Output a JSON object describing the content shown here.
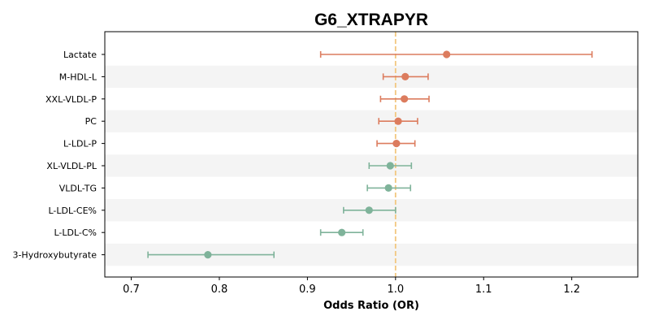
{
  "chart_data": {
    "type": "forest",
    "title": "G6_XTRAPYR",
    "xlabel": "Odds Ratio (OR)",
    "ylabel": "",
    "xlim": [
      0.67,
      1.275
    ],
    "xticks": [
      0.7,
      0.8,
      0.9,
      1.0,
      1.1,
      1.2
    ],
    "xtick_labels": [
      "0.7",
      "0.8",
      "0.9",
      "1.0",
      "1.1",
      "1.2"
    ],
    "reference_line": 1.0,
    "grid": false,
    "alternating_row_bands": true,
    "rows": [
      {
        "label": "Lactate",
        "or": 1.058,
        "ci_low": 0.915,
        "ci_high": 1.223,
        "direction": "increase"
      },
      {
        "label": "M-HDL-L",
        "or": 1.011,
        "ci_low": 0.986,
        "ci_high": 1.037,
        "direction": "increase"
      },
      {
        "label": "XXL-VLDL-P",
        "or": 1.01,
        "ci_low": 0.983,
        "ci_high": 1.038,
        "direction": "increase"
      },
      {
        "label": "PC",
        "or": 1.003,
        "ci_low": 0.981,
        "ci_high": 1.025,
        "direction": "increase"
      },
      {
        "label": "L-LDL-P",
        "or": 1.001,
        "ci_low": 0.979,
        "ci_high": 1.022,
        "direction": "increase"
      },
      {
        "label": "XL-VLDL-PL",
        "or": 0.994,
        "ci_low": 0.97,
        "ci_high": 1.018,
        "direction": "decrease"
      },
      {
        "label": "VLDL-TG",
        "or": 0.992,
        "ci_low": 0.968,
        "ci_high": 1.017,
        "direction": "decrease"
      },
      {
        "label": "L-LDL-CE%",
        "or": 0.97,
        "ci_low": 0.941,
        "ci_high": 1.0,
        "direction": "decrease"
      },
      {
        "label": "L-LDL-C%",
        "or": 0.939,
        "ci_low": 0.915,
        "ci_high": 0.963,
        "direction": "decrease"
      },
      {
        "label": "3-Hydroxybutyrate",
        "or": 0.787,
        "ci_low": 0.719,
        "ci_high": 0.862,
        "direction": "decrease"
      }
    ],
    "colors": {
      "increase": "#dc7c5e",
      "decrease": "#7fb39a",
      "reference_line": "#f2c77f",
      "band": "#f4f4f4",
      "axis": "#000000"
    }
  }
}
